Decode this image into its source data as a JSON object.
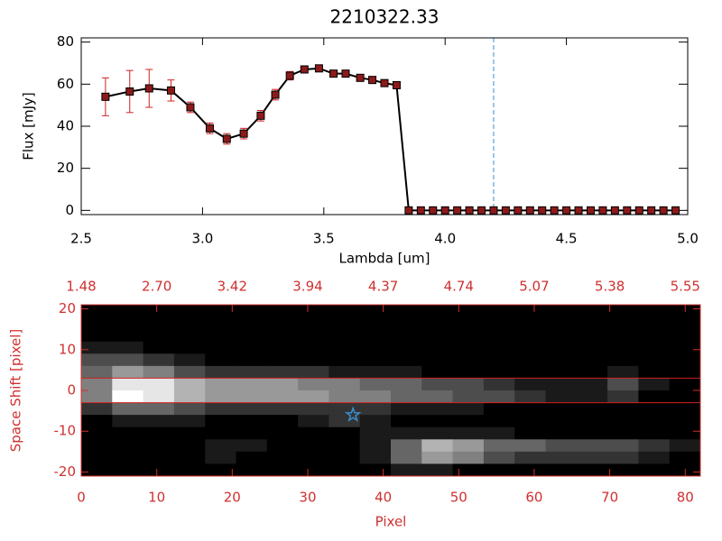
{
  "chart_data": [
    {
      "type": "line",
      "title": "2210322.33",
      "xlabel": "Lambda [um]",
      "ylabel": "Flux [mJy]",
      "xlim": [
        2.5,
        5.0
      ],
      "ylim": [
        -2,
        82
      ],
      "xticks": [
        {
          "value": 2.5,
          "label": "2.5"
        },
        {
          "value": 3.0,
          "label": "3.0"
        },
        {
          "value": 3.5,
          "label": "3.5"
        },
        {
          "value": 4.0,
          "label": "4.0"
        },
        {
          "value": 4.5,
          "label": "4.5"
        },
        {
          "value": 5.0,
          "label": "5.0"
        }
      ],
      "yticks": [
        0,
        20,
        40,
        60,
        80
      ],
      "x": [
        2.6,
        2.7,
        2.78,
        2.87,
        2.95,
        3.03,
        3.1,
        3.17,
        3.24,
        3.3,
        3.36,
        3.42,
        3.48,
        3.54,
        3.59,
        3.65,
        3.7,
        3.75,
        3.8,
        3.85,
        3.9,
        3.95,
        4.0,
        4.05,
        4.1,
        4.15,
        4.2,
        4.25,
        4.3,
        4.35,
        4.4,
        4.45,
        4.5,
        4.55,
        4.6,
        4.65,
        4.7,
        4.75,
        4.8,
        4.85,
        4.9,
        4.95
      ],
      "values": [
        54,
        56.5,
        58,
        57,
        49,
        39,
        34,
        36.5,
        45,
        55,
        64,
        67,
        67.5,
        65,
        65,
        63,
        62,
        60.5,
        59.5,
        0,
        0,
        0,
        0,
        0,
        0,
        0,
        0,
        0,
        0,
        0,
        0,
        0,
        0,
        0,
        0,
        0,
        0,
        0,
        0,
        0,
        0,
        0
      ],
      "errors": [
        9,
        10,
        9,
        5,
        2.5,
        2.5,
        2.5,
        2.5,
        2.5,
        2.5,
        2,
        1.5,
        1.5,
        1,
        1,
        1,
        1,
        1,
        1,
        null,
        null,
        null,
        null,
        null,
        null,
        null,
        null,
        null,
        null,
        null,
        null,
        null,
        null,
        null,
        null,
        null,
        null,
        null,
        null,
        null,
        null,
        null
      ],
      "color": "#000000",
      "marker_color": "#8b1a1a",
      "error_color": "#d02020",
      "vline": 4.2,
      "vline_color": "#3a8fd0"
    },
    {
      "type": "heatmap",
      "xlabel": "Pixel",
      "ylabel": "Space Shift [pixel]",
      "xlim": [
        0,
        82
      ],
      "ylim": [
        -21,
        21
      ],
      "xticks": [
        0,
        10,
        20,
        30,
        40,
        50,
        60,
        70,
        80
      ],
      "yticks": [
        -20,
        -10,
        0,
        10,
        20
      ],
      "x2ticks": [
        {
          "value": 0,
          "label": "1.48"
        },
        {
          "value": 10,
          "label": "2.70"
        },
        {
          "value": 20,
          "label": "3.42"
        },
        {
          "value": 30,
          "label": "3.94"
        },
        {
          "value": 40,
          "label": "4.37"
        },
        {
          "value": 50,
          "label": "4.74"
        },
        {
          "value": 60,
          "label": "5.07"
        },
        {
          "value": 70,
          "label": "5.38"
        },
        {
          "value": 80,
          "label": "5.55"
        }
      ],
      "z": [
        [
          0,
          0,
          0,
          0,
          0,
          0,
          0,
          0,
          0,
          0,
          0,
          0,
          0,
          0,
          0,
          0,
          0,
          0,
          0,
          0
        ],
        [
          0,
          0,
          0,
          0,
          0,
          0,
          0,
          0,
          0,
          0,
          0,
          0,
          0,
          0,
          0,
          0,
          0,
          0,
          0,
          0
        ],
        [
          0,
          0,
          0,
          0,
          0,
          0,
          0,
          0,
          0,
          0,
          0,
          0,
          0,
          0,
          0,
          0,
          0,
          0,
          0,
          0
        ],
        [
          1,
          1,
          0,
          0,
          0,
          0,
          0,
          0,
          0,
          0,
          0,
          0,
          0,
          0,
          0,
          0,
          0,
          0,
          0,
          0
        ],
        [
          3,
          3,
          2,
          1,
          0,
          0,
          0,
          0,
          0,
          0,
          0,
          0,
          0,
          0,
          0,
          0,
          0,
          0,
          0,
          0
        ],
        [
          4,
          6,
          5,
          3,
          2,
          2,
          2,
          2,
          1,
          1,
          1,
          0,
          0,
          0,
          0,
          0,
          0,
          1,
          0,
          0
        ],
        [
          5,
          9,
          9,
          7,
          6,
          6,
          6,
          5,
          5,
          4,
          4,
          3,
          3,
          2,
          1,
          1,
          1,
          3,
          1,
          0
        ],
        [
          5,
          10,
          9,
          7,
          6,
          6,
          6,
          6,
          5,
          5,
          4,
          4,
          3,
          3,
          2,
          1,
          1,
          2,
          0,
          0
        ],
        [
          2,
          4,
          4,
          3,
          2,
          2,
          2,
          2,
          2,
          2,
          1,
          1,
          1,
          0,
          0,
          0,
          0,
          0,
          0,
          0
        ],
        [
          0,
          1,
          1,
          1,
          0,
          0,
          0,
          1,
          2,
          1,
          0,
          0,
          0,
          0,
          0,
          0,
          0,
          0,
          0,
          0
        ],
        [
          0,
          0,
          0,
          0,
          0,
          0,
          0,
          0,
          0,
          1,
          1,
          1,
          1,
          1,
          0,
          0,
          0,
          0,
          0,
          0
        ],
        [
          0,
          0,
          0,
          0,
          1,
          1,
          0,
          0,
          0,
          1,
          4,
          7,
          6,
          4,
          4,
          3,
          3,
          3,
          2,
          1
        ],
        [
          0,
          0,
          0,
          0,
          1,
          0,
          0,
          0,
          0,
          1,
          4,
          6,
          5,
          3,
          2,
          2,
          2,
          2,
          1,
          0
        ],
        [
          0,
          0,
          0,
          0,
          0,
          0,
          0,
          0,
          0,
          0,
          1,
          1,
          0,
          0,
          0,
          0,
          0,
          0,
          0,
          0
        ]
      ],
      "zmax": 10,
      "hlines": [
        3,
        -3
      ],
      "hline_color": "#d02020",
      "marker": {
        "x": 36,
        "y": -6,
        "color": "#3a8fd0"
      },
      "axis_color": "#d03030"
    }
  ]
}
